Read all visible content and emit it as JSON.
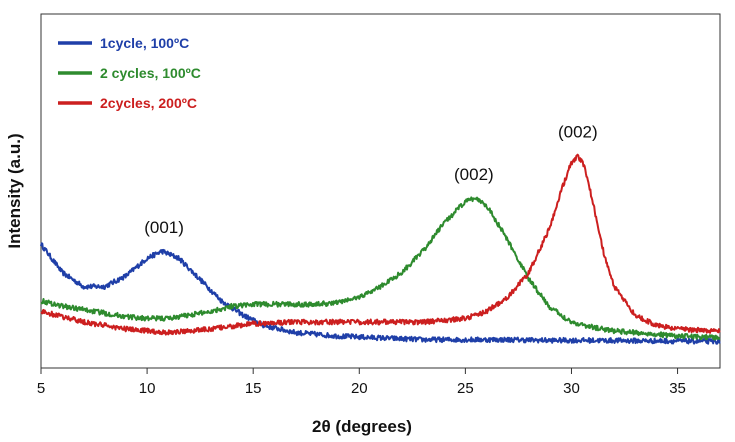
{
  "chart_data": {
    "type": "line",
    "title": "",
    "xlabel": "2θ (degrees)",
    "ylabel": "Intensity (a.u.)",
    "xlim": [
      5,
      37
    ],
    "ylim": [
      0,
      1
    ],
    "xticks": [
      5,
      10,
      15,
      20,
      25,
      30,
      35
    ],
    "yticks_shown": false,
    "grid": false,
    "legend_position": "top-left",
    "series": [
      {
        "name": "1cycle, 100ºC",
        "color": "#1f3fa8",
        "x": [
          5,
          6,
          7,
          8,
          9,
          10,
          10.7,
          11.5,
          12.5,
          13.5,
          14.5,
          15.5,
          17,
          19,
          21,
          23,
          25,
          27,
          29,
          31,
          33,
          35,
          37
        ],
        "y": [
          0.35,
          0.27,
          0.23,
          0.23,
          0.26,
          0.31,
          0.33,
          0.31,
          0.25,
          0.19,
          0.15,
          0.12,
          0.1,
          0.09,
          0.085,
          0.08,
          0.08,
          0.08,
          0.078,
          0.078,
          0.077,
          0.076,
          0.075
        ]
      },
      {
        "name": "2 cycles, 100ºC",
        "color": "#2e8b2e",
        "x": [
          5,
          6,
          7,
          8,
          9,
          10,
          11,
          12,
          13,
          14,
          15,
          16,
          17,
          18,
          19,
          20,
          21,
          22,
          23,
          24,
          25,
          25.5,
          26,
          27,
          28,
          29,
          30,
          31,
          32,
          33,
          34,
          35,
          37
        ],
        "y": [
          0.19,
          0.175,
          0.165,
          0.155,
          0.145,
          0.14,
          0.14,
          0.15,
          0.16,
          0.175,
          0.18,
          0.18,
          0.18,
          0.18,
          0.185,
          0.2,
          0.23,
          0.27,
          0.33,
          0.41,
          0.47,
          0.48,
          0.46,
          0.36,
          0.25,
          0.17,
          0.13,
          0.115,
          0.105,
          0.1,
          0.095,
          0.09,
          0.085
        ]
      },
      {
        "name": "2cycles,  200ºC",
        "color": "#cc1f1f",
        "x": [
          5,
          7,
          9,
          11,
          13,
          15,
          17,
          19,
          21,
          23,
          25,
          26,
          27,
          28,
          29,
          29.5,
          30,
          30.3,
          30.6,
          31,
          31.5,
          32,
          33,
          34,
          35,
          37
        ],
        "y": [
          0.16,
          0.13,
          0.11,
          0.1,
          0.11,
          0.125,
          0.13,
          0.13,
          0.13,
          0.13,
          0.14,
          0.16,
          0.2,
          0.27,
          0.4,
          0.5,
          0.58,
          0.6,
          0.57,
          0.47,
          0.33,
          0.23,
          0.15,
          0.12,
          0.11,
          0.105
        ]
      }
    ],
    "annotations": [
      {
        "text": "(001)",
        "x": 10.8,
        "y": 0.33
      },
      {
        "text": "(002)",
        "x": 25.4,
        "y": 0.48
      },
      {
        "text": "(002)",
        "x": 30.3,
        "y": 0.6
      }
    ]
  }
}
